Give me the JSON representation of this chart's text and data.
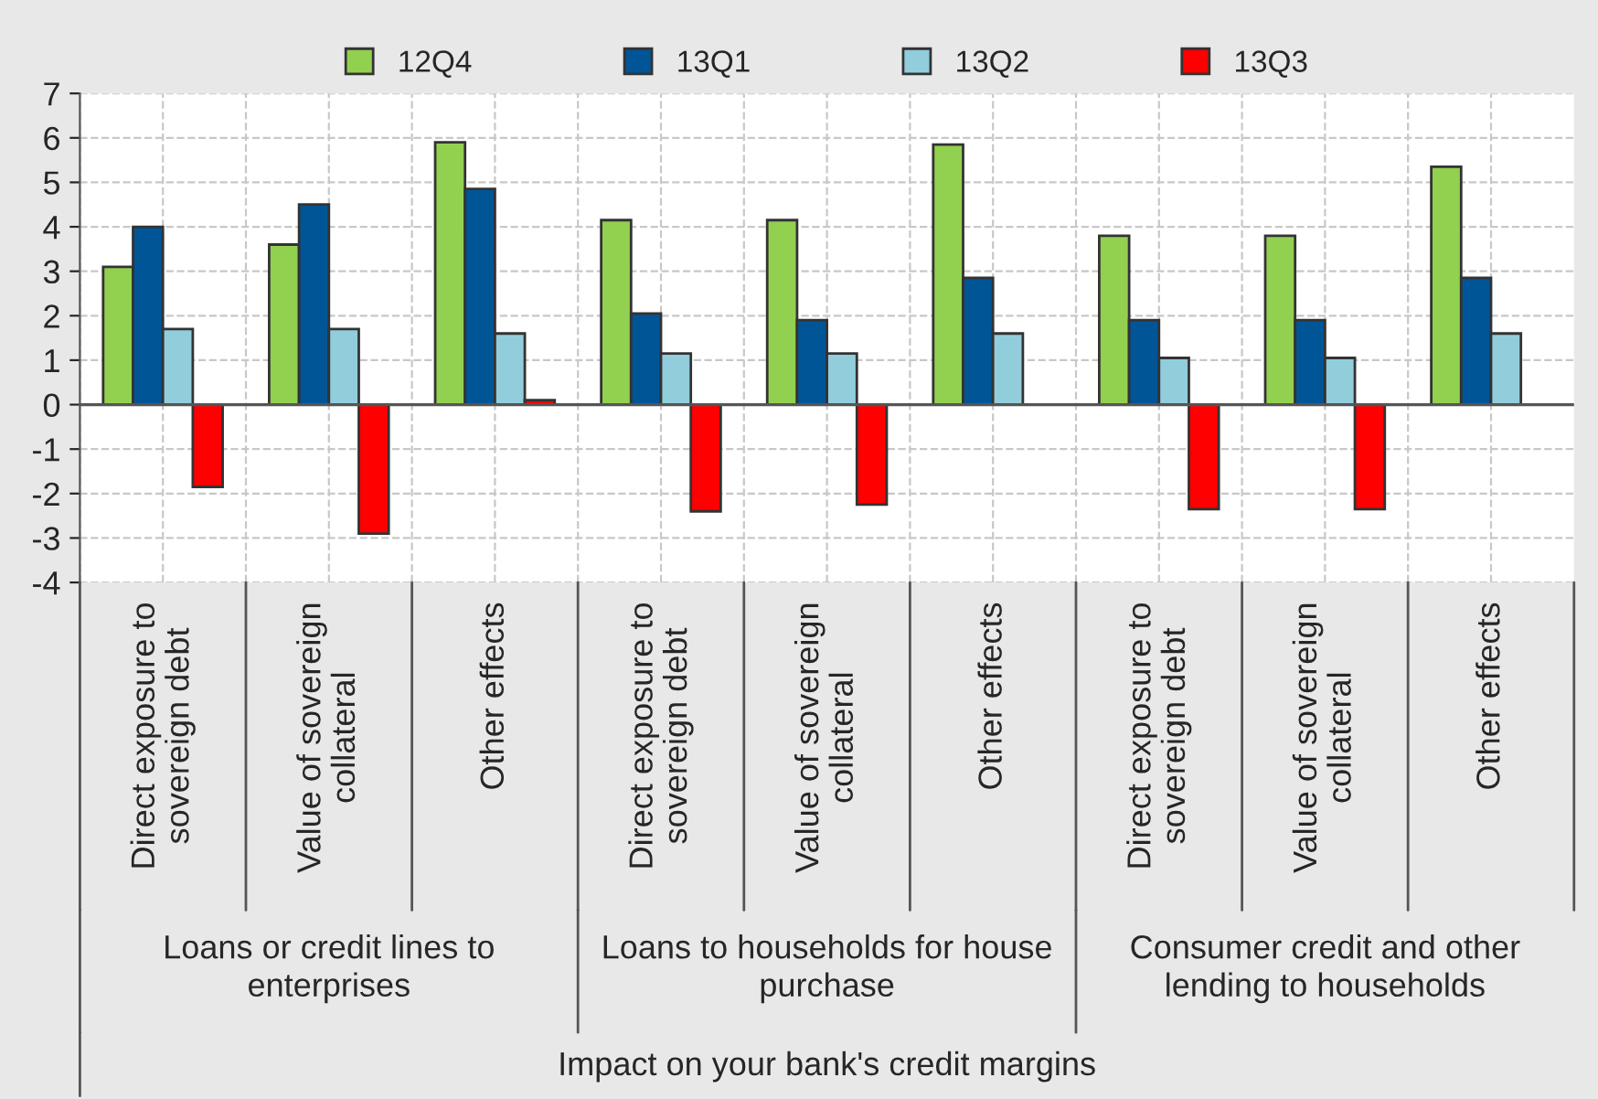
{
  "chart_data": {
    "type": "bar",
    "categories": [
      "Direct exposure to sovereign debt",
      "Value of sovereign collateral",
      "Other effects",
      "Direct exposure to sovereign debt",
      "Value of sovereign collateral",
      "Other effects",
      "Direct exposure to sovereign debt",
      "Value of sovereign collateral",
      "Other effects"
    ],
    "series": [
      {
        "name": "12Q4",
        "color": "#92d050",
        "values": [
          3.1,
          3.6,
          5.9,
          4.15,
          4.15,
          5.85,
          3.8,
          3.8,
          5.35
        ]
      },
      {
        "name": "13Q1",
        "color": "#005597",
        "values": [
          4.0,
          4.5,
          4.85,
          2.05,
          1.9,
          2.85,
          1.9,
          1.9,
          2.85
        ]
      },
      {
        "name": "13Q2",
        "color": "#92cddc",
        "values": [
          1.7,
          1.7,
          1.6,
          1.15,
          1.15,
          1.6,
          1.05,
          1.05,
          1.6
        ]
      },
      {
        "name": "13Q3",
        "color": "#ff0000",
        "values": [
          -1.85,
          -2.9,
          0.1,
          -2.4,
          -2.25,
          null,
          -2.35,
          -2.35,
          null
        ]
      }
    ],
    "annotations": [
      "Loans or credit lines to enterprises",
      "Loans to households for house purchase",
      "Consumer credit and other lending to households",
      "Impact on your bank's credit margins"
    ],
    "ylim": [
      -4,
      7
    ],
    "yticks": [
      -4,
      -3,
      -2,
      -1,
      0,
      1,
      2,
      3,
      4,
      5,
      6,
      7
    ],
    "grid": true,
    "legend": "top"
  }
}
